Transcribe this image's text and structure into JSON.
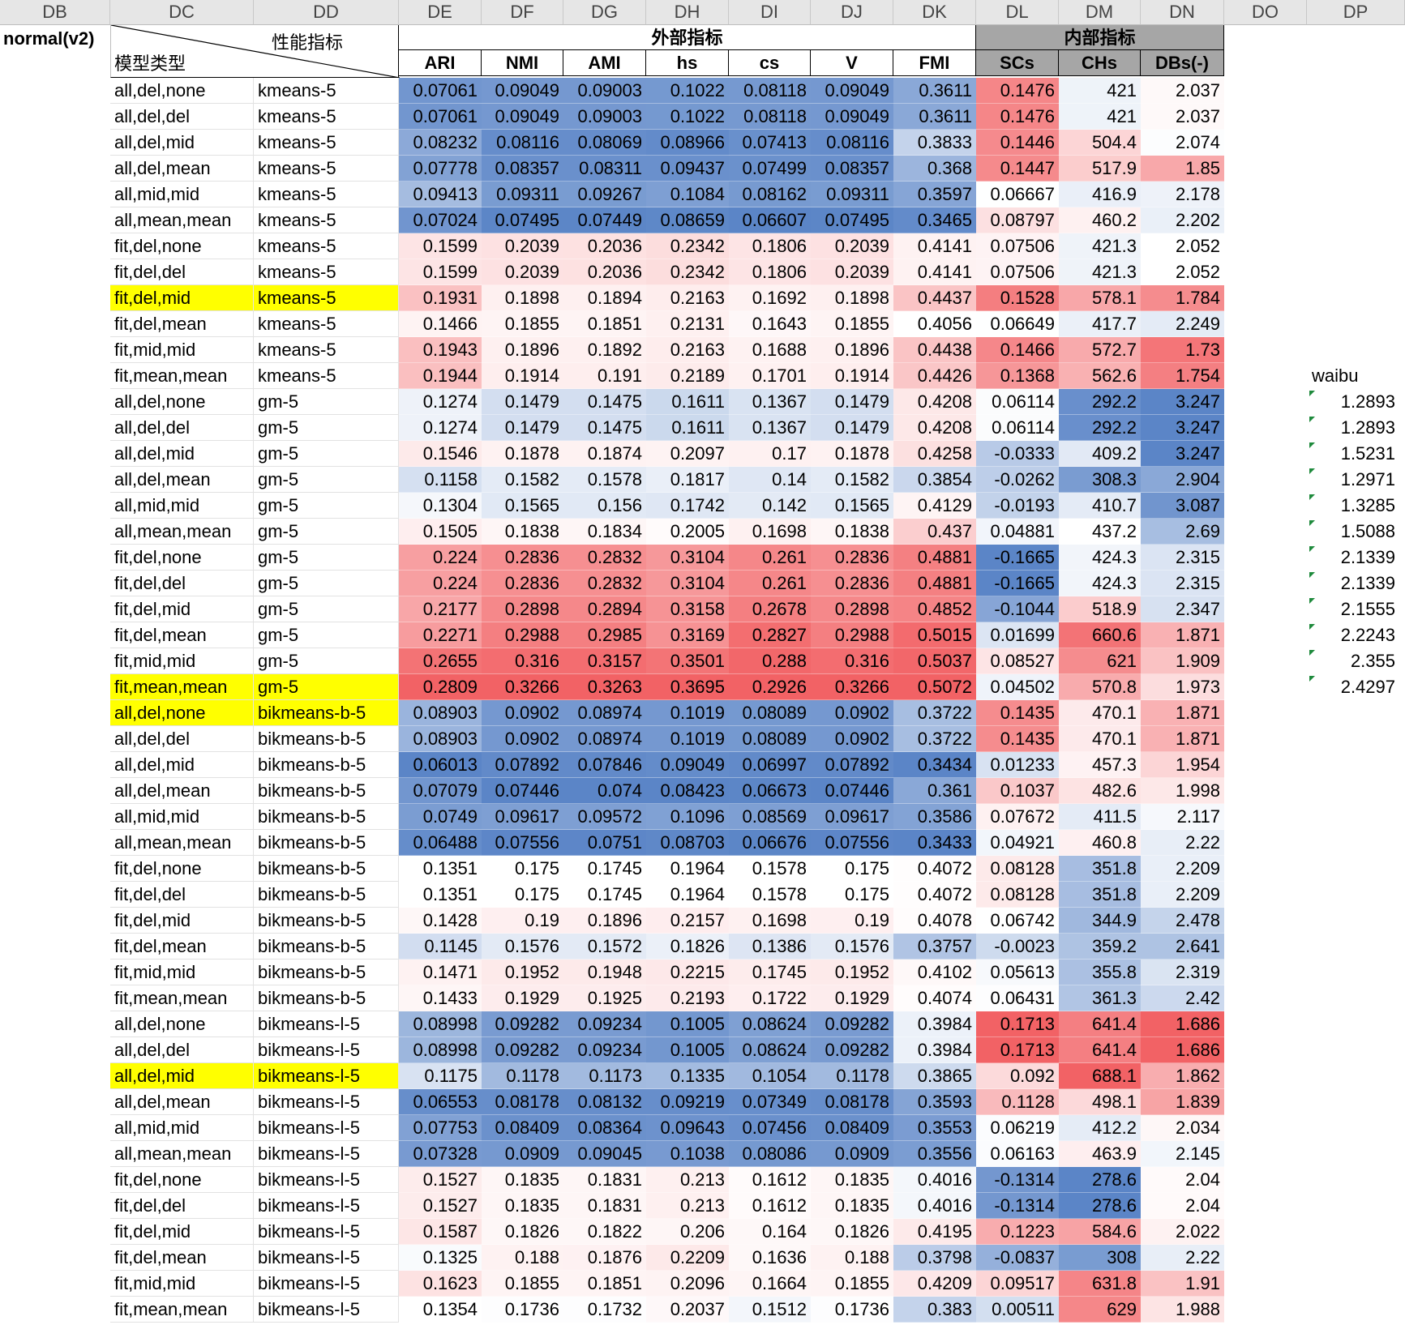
{
  "columns": [
    "DB",
    "DC",
    "DD",
    "DE",
    "DF",
    "DG",
    "DH",
    "DI",
    "DJ",
    "DK",
    "DL",
    "DM",
    "DN",
    "DO",
    "DP"
  ],
  "sheet_label": "normal(v2)",
  "corner_header": {
    "row_label": "模型类型",
    "col_label": "性能指标"
  },
  "groups": {
    "external": "外部指标",
    "internal": "内部指标"
  },
  "metrics": [
    "ARI",
    "NMI",
    "AMI",
    "hs",
    "cs",
    "V",
    "FMI",
    "SCs",
    "CHs",
    "DBs(-)"
  ],
  "side_column": {
    "title": "waibu",
    "values": [
      "1.2893",
      "1.2893",
      "1.5231",
      "1.2971",
      "1.3285",
      "1.5088",
      "2.1339",
      "2.1339",
      "2.1555",
      "2.2243",
      "2.355",
      "2.4297"
    ]
  },
  "rows": [
    {
      "dc": "all,del,none",
      "dd": "kmeans-5",
      "v": [
        "0.07061",
        "0.09049",
        "0.09003",
        "0.1022",
        "0.08118",
        "0.09049",
        "0.3611",
        "0.1476",
        "421",
        "2.037"
      ],
      "hl": false
    },
    {
      "dc": "all,del,del",
      "dd": "kmeans-5",
      "v": [
        "0.07061",
        "0.09049",
        "0.09003",
        "0.1022",
        "0.08118",
        "0.09049",
        "0.3611",
        "0.1476",
        "421",
        "2.037"
      ],
      "hl": false
    },
    {
      "dc": "all,del,mid",
      "dd": "kmeans-5",
      "v": [
        "0.08232",
        "0.08116",
        "0.08069",
        "0.08966",
        "0.07413",
        "0.08116",
        "0.3833",
        "0.1446",
        "504.4",
        "2.074"
      ],
      "hl": false
    },
    {
      "dc": "all,del,mean",
      "dd": "kmeans-5",
      "v": [
        "0.07778",
        "0.08357",
        "0.08311",
        "0.09437",
        "0.07499",
        "0.08357",
        "0.368",
        "0.1447",
        "517.9",
        "1.85"
      ],
      "hl": false
    },
    {
      "dc": "all,mid,mid",
      "dd": "kmeans-5",
      "v": [
        "0.09413",
        "0.09311",
        "0.09267",
        "0.1084",
        "0.08162",
        "0.09311",
        "0.3597",
        "0.06667",
        "416.9",
        "2.178"
      ],
      "hl": false
    },
    {
      "dc": "all,mean,mean",
      "dd": "kmeans-5",
      "v": [
        "0.07024",
        "0.07495",
        "0.07449",
        "0.08659",
        "0.06607",
        "0.07495",
        "0.3465",
        "0.08797",
        "460.2",
        "2.202"
      ],
      "hl": false
    },
    {
      "dc": "fit,del,none",
      "dd": "kmeans-5",
      "v": [
        "0.1599",
        "0.2039",
        "0.2036",
        "0.2342",
        "0.1806",
        "0.2039",
        "0.4141",
        "0.07506",
        "421.3",
        "2.052"
      ],
      "hl": false
    },
    {
      "dc": "fit,del,del",
      "dd": "kmeans-5",
      "v": [
        "0.1599",
        "0.2039",
        "0.2036",
        "0.2342",
        "0.1806",
        "0.2039",
        "0.4141",
        "0.07506",
        "421.3",
        "2.052"
      ],
      "hl": false
    },
    {
      "dc": "fit,del,mid",
      "dd": "kmeans-5",
      "v": [
        "0.1931",
        "0.1898",
        "0.1894",
        "0.2163",
        "0.1692",
        "0.1898",
        "0.4437",
        "0.1528",
        "578.1",
        "1.784"
      ],
      "hl": true
    },
    {
      "dc": "fit,del,mean",
      "dd": "kmeans-5",
      "v": [
        "0.1466",
        "0.1855",
        "0.1851",
        "0.2131",
        "0.1643",
        "0.1855",
        "0.4056",
        "0.06649",
        "417.7",
        "2.249"
      ],
      "hl": false
    },
    {
      "dc": "fit,mid,mid",
      "dd": "kmeans-5",
      "v": [
        "0.1943",
        "0.1896",
        "0.1892",
        "0.2163",
        "0.1688",
        "0.1896",
        "0.4438",
        "0.1466",
        "572.7",
        "1.73"
      ],
      "hl": false
    },
    {
      "dc": "fit,mean,mean",
      "dd": "kmeans-5",
      "v": [
        "0.1944",
        "0.1914",
        "0.191",
        "0.2189",
        "0.1701",
        "0.1914",
        "0.4426",
        "0.1368",
        "562.6",
        "1.754"
      ],
      "hl": false
    },
    {
      "dc": "all,del,none",
      "dd": "gm-5",
      "v": [
        "0.1274",
        "0.1479",
        "0.1475",
        "0.1611",
        "0.1367",
        "0.1479",
        "0.4208",
        "0.06114",
        "292.2",
        "3.247"
      ],
      "hl": false
    },
    {
      "dc": "all,del,del",
      "dd": "gm-5",
      "v": [
        "0.1274",
        "0.1479",
        "0.1475",
        "0.1611",
        "0.1367",
        "0.1479",
        "0.4208",
        "0.06114",
        "292.2",
        "3.247"
      ],
      "hl": false
    },
    {
      "dc": "all,del,mid",
      "dd": "gm-5",
      "v": [
        "0.1546",
        "0.1878",
        "0.1874",
        "0.2097",
        "0.17",
        "0.1878",
        "0.4258",
        "-0.0333",
        "409.2",
        "3.247"
      ],
      "hl": false
    },
    {
      "dc": "all,del,mean",
      "dd": "gm-5",
      "v": [
        "0.1158",
        "0.1582",
        "0.1578",
        "0.1817",
        "0.14",
        "0.1582",
        "0.3854",
        "-0.0262",
        "308.3",
        "2.904"
      ],
      "hl": false
    },
    {
      "dc": "all,mid,mid",
      "dd": "gm-5",
      "v": [
        "0.1304",
        "0.1565",
        "0.156",
        "0.1742",
        "0.142",
        "0.1565",
        "0.4129",
        "-0.0193",
        "410.7",
        "3.087"
      ],
      "hl": false
    },
    {
      "dc": "all,mean,mean",
      "dd": "gm-5",
      "v": [
        "0.1505",
        "0.1838",
        "0.1834",
        "0.2005",
        "0.1698",
        "0.1838",
        "0.437",
        "0.04881",
        "437.2",
        "2.69"
      ],
      "hl": false
    },
    {
      "dc": "fit,del,none",
      "dd": "gm-5",
      "v": [
        "0.224",
        "0.2836",
        "0.2832",
        "0.3104",
        "0.261",
        "0.2836",
        "0.4881",
        "-0.1665",
        "424.3",
        "2.315"
      ],
      "hl": false
    },
    {
      "dc": "fit,del,del",
      "dd": "gm-5",
      "v": [
        "0.224",
        "0.2836",
        "0.2832",
        "0.3104",
        "0.261",
        "0.2836",
        "0.4881",
        "-0.1665",
        "424.3",
        "2.315"
      ],
      "hl": false
    },
    {
      "dc": "fit,del,mid",
      "dd": "gm-5",
      "v": [
        "0.2177",
        "0.2898",
        "0.2894",
        "0.3158",
        "0.2678",
        "0.2898",
        "0.4852",
        "-0.1044",
        "518.9",
        "2.347"
      ],
      "hl": false
    },
    {
      "dc": "fit,del,mean",
      "dd": "gm-5",
      "v": [
        "0.2271",
        "0.2988",
        "0.2985",
        "0.3169",
        "0.2827",
        "0.2988",
        "0.5015",
        "0.01699",
        "660.6",
        "1.871"
      ],
      "hl": false
    },
    {
      "dc": "fit,mid,mid",
      "dd": "gm-5",
      "v": [
        "0.2655",
        "0.316",
        "0.3157",
        "0.3501",
        "0.288",
        "0.316",
        "0.5037",
        "0.08527",
        "621",
        "1.909"
      ],
      "hl": false
    },
    {
      "dc": "fit,mean,mean",
      "dd": "gm-5",
      "v": [
        "0.2809",
        "0.3266",
        "0.3263",
        "0.3695",
        "0.2926",
        "0.3266",
        "0.5072",
        "0.04502",
        "570.8",
        "1.973"
      ],
      "hl": true
    },
    {
      "dc": "all,del,none",
      "dd": "bikmeans-b-5",
      "v": [
        "0.08903",
        "0.0902",
        "0.08974",
        "0.1019",
        "0.08089",
        "0.0902",
        "0.3722",
        "0.1435",
        "470.1",
        "1.871"
      ],
      "hl": true
    },
    {
      "dc": "all,del,del",
      "dd": "bikmeans-b-5",
      "v": [
        "0.08903",
        "0.0902",
        "0.08974",
        "0.1019",
        "0.08089",
        "0.0902",
        "0.3722",
        "0.1435",
        "470.1",
        "1.871"
      ],
      "hl": false
    },
    {
      "dc": "all,del,mid",
      "dd": "bikmeans-b-5",
      "v": [
        "0.06013",
        "0.07892",
        "0.07846",
        "0.09049",
        "0.06997",
        "0.07892",
        "0.3434",
        "0.01233",
        "457.3",
        "1.954"
      ],
      "hl": false
    },
    {
      "dc": "all,del,mean",
      "dd": "bikmeans-b-5",
      "v": [
        "0.07079",
        "0.07446",
        "0.074",
        "0.08423",
        "0.06673",
        "0.07446",
        "0.361",
        "0.1037",
        "482.6",
        "1.998"
      ],
      "hl": false
    },
    {
      "dc": "all,mid,mid",
      "dd": "bikmeans-b-5",
      "v": [
        "0.0749",
        "0.09617",
        "0.09572",
        "0.1096",
        "0.08569",
        "0.09617",
        "0.3586",
        "0.07672",
        "411.5",
        "2.117"
      ],
      "hl": false
    },
    {
      "dc": "all,mean,mean",
      "dd": "bikmeans-b-5",
      "v": [
        "0.06488",
        "0.07556",
        "0.0751",
        "0.08703",
        "0.06676",
        "0.07556",
        "0.3433",
        "0.04921",
        "460.8",
        "2.22"
      ],
      "hl": false
    },
    {
      "dc": "fit,del,none",
      "dd": "bikmeans-b-5",
      "v": [
        "0.1351",
        "0.175",
        "0.1745",
        "0.1964",
        "0.1578",
        "0.175",
        "0.4072",
        "0.08128",
        "351.8",
        "2.209"
      ],
      "hl": false
    },
    {
      "dc": "fit,del,del",
      "dd": "bikmeans-b-5",
      "v": [
        "0.1351",
        "0.175",
        "0.1745",
        "0.1964",
        "0.1578",
        "0.175",
        "0.4072",
        "0.08128",
        "351.8",
        "2.209"
      ],
      "hl": false
    },
    {
      "dc": "fit,del,mid",
      "dd": "bikmeans-b-5",
      "v": [
        "0.1428",
        "0.19",
        "0.1896",
        "0.2157",
        "0.1698",
        "0.19",
        "0.4078",
        "0.06742",
        "344.9",
        "2.478"
      ],
      "hl": false
    },
    {
      "dc": "fit,del,mean",
      "dd": "bikmeans-b-5",
      "v": [
        "0.1145",
        "0.1576",
        "0.1572",
        "0.1826",
        "0.1386",
        "0.1576",
        "0.3757",
        "-0.0023",
        "359.2",
        "2.641"
      ],
      "hl": false
    },
    {
      "dc": "fit,mid,mid",
      "dd": "bikmeans-b-5",
      "v": [
        "0.1471",
        "0.1952",
        "0.1948",
        "0.2215",
        "0.1745",
        "0.1952",
        "0.4102",
        "0.05613",
        "355.8",
        "2.319"
      ],
      "hl": false
    },
    {
      "dc": "fit,mean,mean",
      "dd": "bikmeans-b-5",
      "v": [
        "0.1433",
        "0.1929",
        "0.1925",
        "0.2193",
        "0.1722",
        "0.1929",
        "0.4074",
        "0.06431",
        "361.3",
        "2.42"
      ],
      "hl": false
    },
    {
      "dc": "all,del,none",
      "dd": "bikmeans-l-5",
      "v": [
        "0.08998",
        "0.09282",
        "0.09234",
        "0.1005",
        "0.08624",
        "0.09282",
        "0.3984",
        "0.1713",
        "641.4",
        "1.686"
      ],
      "hl": false
    },
    {
      "dc": "all,del,del",
      "dd": "bikmeans-l-5",
      "v": [
        "0.08998",
        "0.09282",
        "0.09234",
        "0.1005",
        "0.08624",
        "0.09282",
        "0.3984",
        "0.1713",
        "641.4",
        "1.686"
      ],
      "hl": false
    },
    {
      "dc": "all,del,mid",
      "dd": "bikmeans-l-5",
      "v": [
        "0.1175",
        "0.1178",
        "0.1173",
        "0.1335",
        "0.1054",
        "0.1178",
        "0.3865",
        "0.092",
        "688.1",
        "1.862"
      ],
      "hl": true
    },
    {
      "dc": "all,del,mean",
      "dd": "bikmeans-l-5",
      "v": [
        "0.06553",
        "0.08178",
        "0.08132",
        "0.09219",
        "0.07349",
        "0.08178",
        "0.3593",
        "0.1128",
        "498.1",
        "1.839"
      ],
      "hl": false
    },
    {
      "dc": "all,mid,mid",
      "dd": "bikmeans-l-5",
      "v": [
        "0.07753",
        "0.08409",
        "0.08364",
        "0.09643",
        "0.07456",
        "0.08409",
        "0.3553",
        "0.06219",
        "412.2",
        "2.034"
      ],
      "hl": false
    },
    {
      "dc": "all,mean,mean",
      "dd": "bikmeans-l-5",
      "v": [
        "0.07328",
        "0.0909",
        "0.09045",
        "0.1038",
        "0.08086",
        "0.0909",
        "0.3556",
        "0.06163",
        "463.9",
        "2.145"
      ],
      "hl": false
    },
    {
      "dc": "fit,del,none",
      "dd": "bikmeans-l-5",
      "v": [
        "0.1527",
        "0.1835",
        "0.1831",
        "0.213",
        "0.1612",
        "0.1835",
        "0.4016",
        "-0.1314",
        "278.6",
        "2.04"
      ],
      "hl": false
    },
    {
      "dc": "fit,del,del",
      "dd": "bikmeans-l-5",
      "v": [
        "0.1527",
        "0.1835",
        "0.1831",
        "0.213",
        "0.1612",
        "0.1835",
        "0.4016",
        "-0.1314",
        "278.6",
        "2.04"
      ],
      "hl": false
    },
    {
      "dc": "fit,del,mid",
      "dd": "bikmeans-l-5",
      "v": [
        "0.1587",
        "0.1826",
        "0.1822",
        "0.206",
        "0.164",
        "0.1826",
        "0.4195",
        "0.1223",
        "584.6",
        "2.022"
      ],
      "hl": false
    },
    {
      "dc": "fit,del,mean",
      "dd": "bikmeans-l-5",
      "v": [
        "0.1325",
        "0.188",
        "0.1876",
        "0.2209",
        "0.1636",
        "0.188",
        "0.3798",
        "-0.0837",
        "308",
        "2.22"
      ],
      "hl": false
    },
    {
      "dc": "fit,mid,mid",
      "dd": "bikmeans-l-5",
      "v": [
        "0.1623",
        "0.1855",
        "0.1851",
        "0.2096",
        "0.1664",
        "0.1855",
        "0.4209",
        "0.09517",
        "631.8",
        "1.91"
      ],
      "hl": false
    },
    {
      "dc": "fit,mean,mean",
      "dd": "bikmeans-l-5",
      "v": [
        "0.1354",
        "0.1736",
        "0.1732",
        "0.2037",
        "0.1512",
        "0.1736",
        "0.383",
        "0.00511",
        "629",
        "1.988"
      ],
      "hl": false
    }
  ],
  "colors": {
    "scale_low": "#5b85c7",
    "scale_mid": "#ffffff",
    "scale_high": "#f26265",
    "highlight": "#ffff00",
    "internal_header_bg": "#a6a6a6",
    "column_header_bg": "#e6e6e6"
  }
}
